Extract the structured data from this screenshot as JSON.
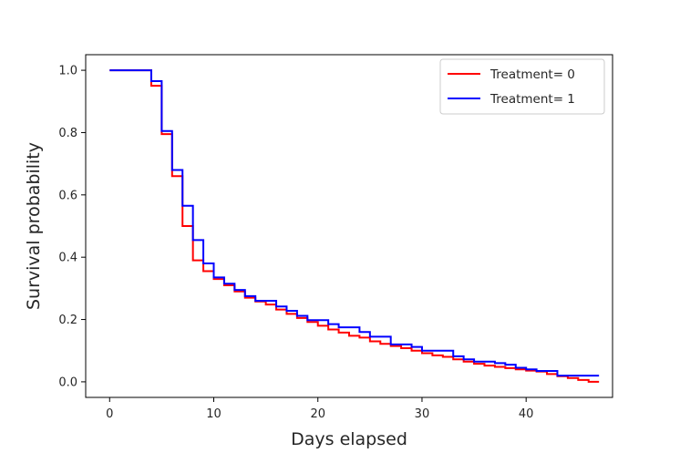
{
  "chart_data": {
    "type": "line",
    "step": "post",
    "title": "",
    "xlabel": "Days elapsed",
    "ylabel": "Survival probability",
    "xlim": [
      -2.3,
      48.3
    ],
    "ylim": [
      -0.05,
      1.05
    ],
    "xticks": [
      0,
      10,
      20,
      30,
      40
    ],
    "yticks": [
      0.0,
      0.2,
      0.4,
      0.6,
      0.8,
      1.0
    ],
    "xtick_labels": [
      "0",
      "10",
      "20",
      "30",
      "40"
    ],
    "ytick_labels": [
      "0.0",
      "0.2",
      "0.4",
      "0.6",
      "0.8",
      "1.0"
    ],
    "grid": false,
    "legend_position": "top-right",
    "series": [
      {
        "name": "Treatment= 0",
        "color": "#ff0000",
        "x": [
          0,
          4,
          5,
          6,
          7,
          8,
          9,
          10,
          11,
          12,
          13,
          14,
          15,
          16,
          17,
          18,
          19,
          20,
          21,
          22,
          23,
          24,
          25,
          26,
          27,
          28,
          29,
          30,
          31,
          32,
          33,
          34,
          35,
          36,
          37,
          38,
          39,
          40,
          41,
          42,
          43,
          44,
          45,
          46,
          47
        ],
        "y": [
          1.0,
          0.95,
          0.795,
          0.66,
          0.5,
          0.39,
          0.355,
          0.33,
          0.31,
          0.29,
          0.27,
          0.258,
          0.248,
          0.232,
          0.218,
          0.205,
          0.192,
          0.18,
          0.168,
          0.158,
          0.148,
          0.142,
          0.13,
          0.122,
          0.115,
          0.108,
          0.1,
          0.092,
          0.085,
          0.08,
          0.072,
          0.065,
          0.058,
          0.052,
          0.048,
          0.044,
          0.04,
          0.036,
          0.033,
          0.025,
          0.018,
          0.012,
          0.006,
          0.0,
          0.0
        ]
      },
      {
        "name": "Treatment= 1",
        "color": "#0000ff",
        "x": [
          0,
          4,
          5,
          6,
          7,
          8,
          9,
          10,
          11,
          12,
          13,
          14,
          16,
          17,
          18,
          19,
          21,
          22,
          24,
          25,
          27,
          29,
          30,
          33,
          34,
          35,
          37,
          38,
          39,
          40,
          41,
          43,
          47
        ],
        "y": [
          1.0,
          0.965,
          0.805,
          0.68,
          0.565,
          0.455,
          0.38,
          0.335,
          0.315,
          0.295,
          0.275,
          0.26,
          0.242,
          0.228,
          0.212,
          0.198,
          0.185,
          0.175,
          0.16,
          0.145,
          0.12,
          0.112,
          0.1,
          0.082,
          0.072,
          0.065,
          0.06,
          0.055,
          0.045,
          0.04,
          0.035,
          0.02,
          0.02
        ]
      }
    ]
  }
}
